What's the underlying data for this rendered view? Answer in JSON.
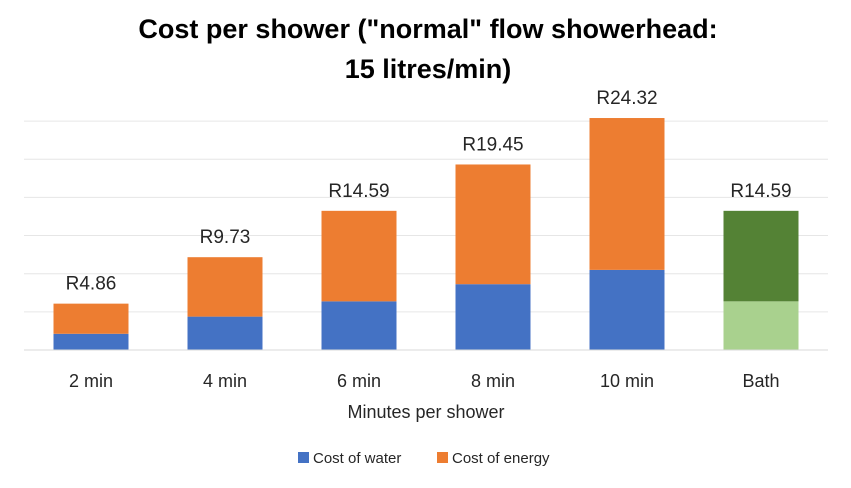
{
  "chart_data": {
    "type": "bar",
    "stacked": true,
    "title": [
      "Cost per shower (\"normal\" flow showerhead:",
      "15 litres/min)"
    ],
    "xlabel": "Minutes per shower",
    "ylabel": "",
    "categories": [
      "2 min",
      "4 min",
      "6 min",
      "8 min",
      "10 min",
      "Bath"
    ],
    "ylim": [
      0,
      26
    ],
    "grid": true,
    "legend_position": "bottom",
    "series": [
      {
        "name": "Cost of water",
        "color": "#4472c4",
        "values": [
          1.7,
          3.5,
          5.1,
          6.9,
          8.4,
          5.1
        ]
      },
      {
        "name": "Cost of energy",
        "color": "#ed7d31",
        "values": [
          3.16,
          6.23,
          9.49,
          12.55,
          15.92,
          9.49
        ]
      }
    ],
    "bar_color_overrides": [
      {
        "category": "Bath",
        "colors": [
          "#a9d18e",
          "#548235"
        ]
      }
    ],
    "total_labels": [
      "R4.86",
      "R9.73",
      "R14.59",
      "R19.45",
      "R24.32",
      "R14.59"
    ]
  }
}
